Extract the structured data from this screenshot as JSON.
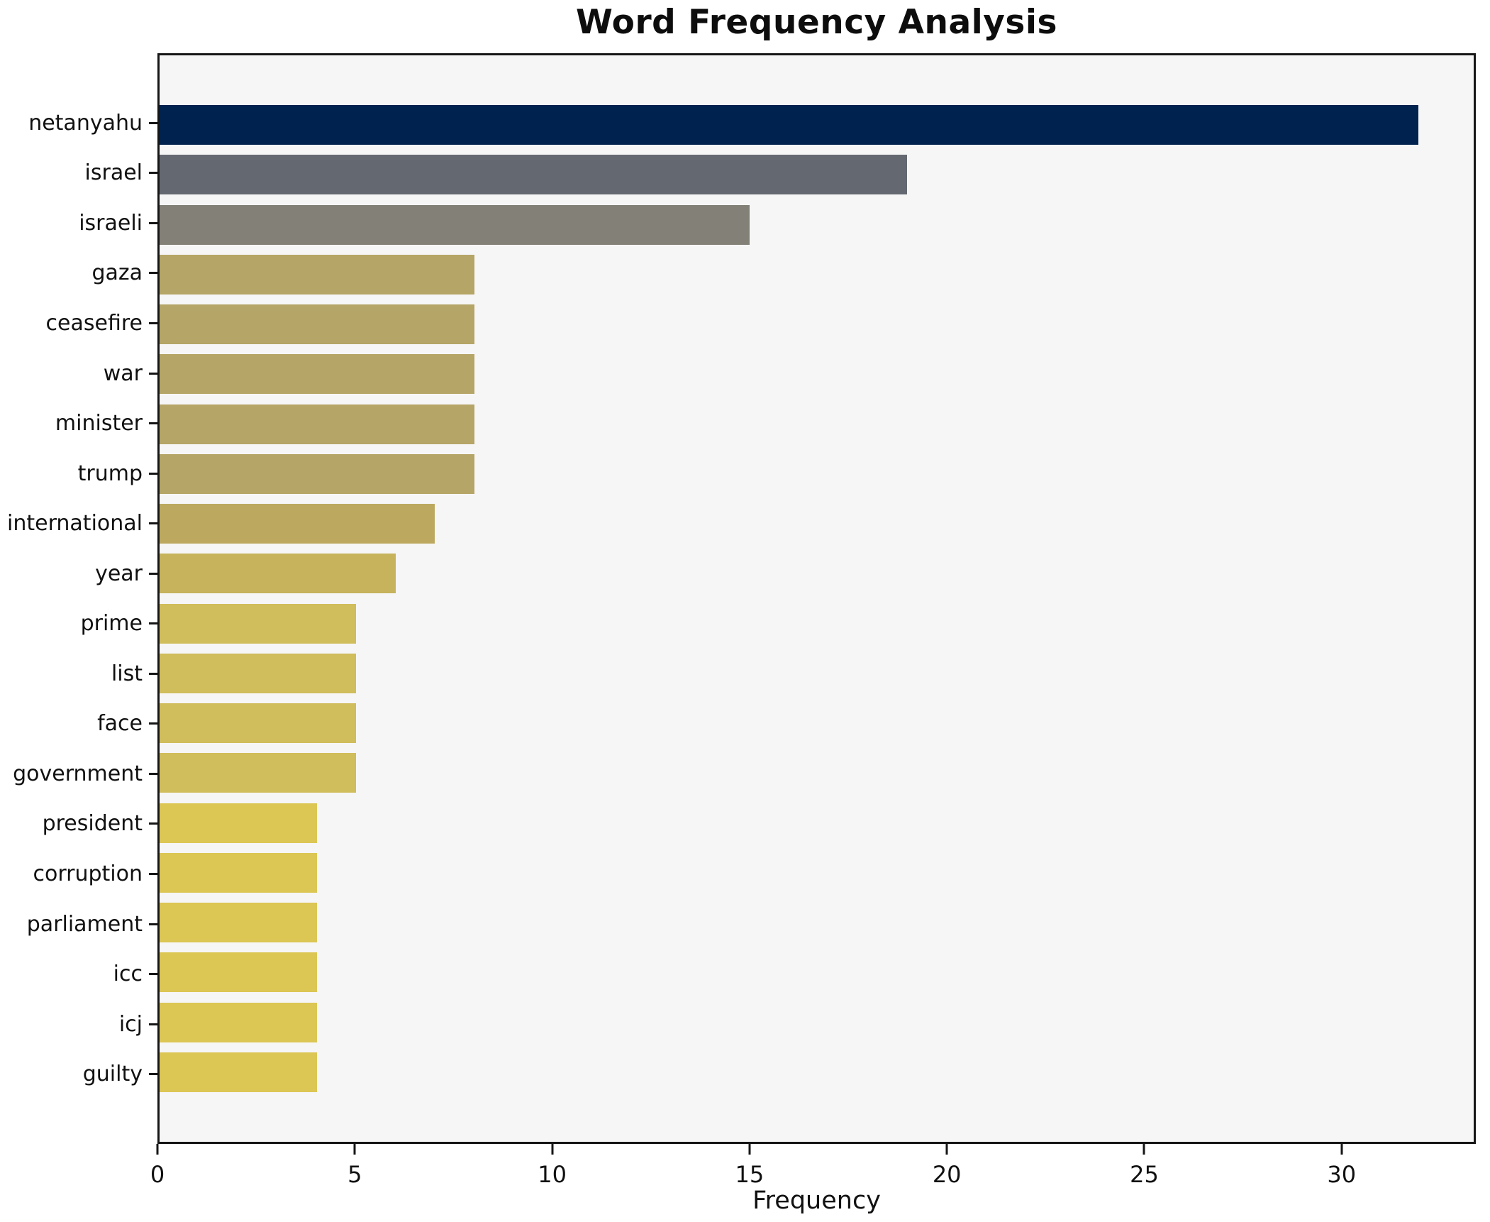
{
  "title": "Word Frequency Analysis",
  "chart_data": {
    "type": "bar",
    "orientation": "horizontal",
    "title": "Word Frequency Analysis",
    "xlabel": "Frequency",
    "ylabel": "",
    "categories": [
      "netanyahu",
      "israel",
      "israeli",
      "gaza",
      "ceasefire",
      "war",
      "minister",
      "trump",
      "international",
      "year",
      "prime",
      "list",
      "face",
      "government",
      "president",
      "corruption",
      "parliament",
      "icc",
      "icj",
      "guilty"
    ],
    "values": [
      32,
      19,
      15,
      8,
      8,
      8,
      8,
      8,
      7,
      6,
      5,
      5,
      5,
      5,
      4,
      4,
      4,
      4,
      4,
      4
    ],
    "bar_colors": [
      "#00224e",
      "#646971",
      "#838078",
      "#b5a566",
      "#b5a566",
      "#b5a566",
      "#b5a566",
      "#b5a566",
      "#bca95f",
      "#c6b35b",
      "#d0bd5b",
      "#d0bd5b",
      "#d0bd5b",
      "#d0bd5b",
      "#dcc654",
      "#dcc654",
      "#dcc654",
      "#dcc654",
      "#dcc654",
      "#dcc654"
    ],
    "xlim": [
      0,
      33.4
    ],
    "xticks": [
      0,
      5,
      10,
      15,
      20,
      25,
      30
    ],
    "grid": false,
    "legend": false,
    "plot_background": "#f6f6f7",
    "figure_background": "#ffffff",
    "spine_color": "#161616"
  }
}
